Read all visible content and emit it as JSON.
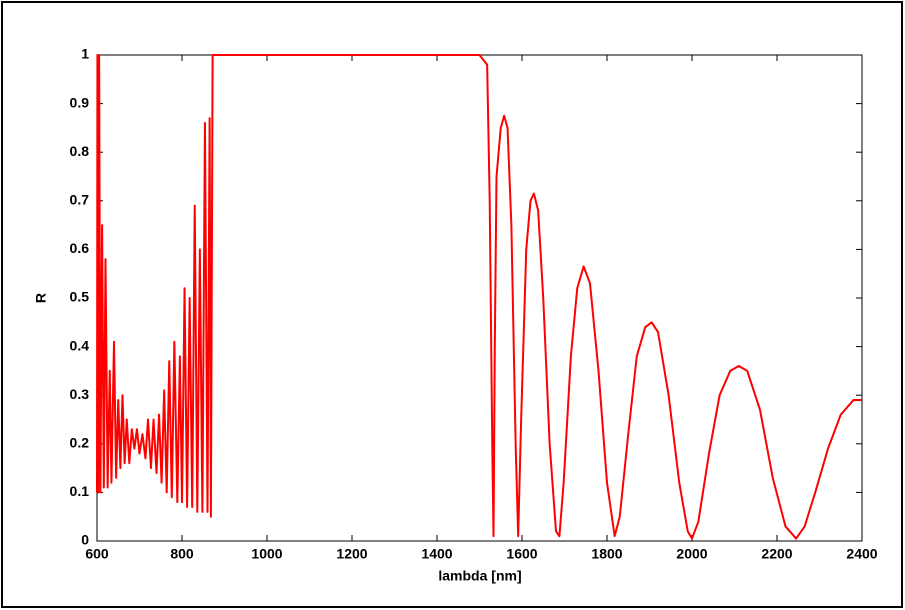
{
  "chart_data": {
    "type": "line",
    "xlabel": "lambda [nm]",
    "ylabel": "R",
    "color": "#ff0000",
    "x": [
      600,
      601,
      603,
      605,
      608,
      612,
      616,
      620,
      625,
      630,
      634,
      640,
      645,
      650,
      655,
      660,
      665,
      670,
      676,
      682,
      688,
      694,
      700,
      707,
      714,
      720,
      727,
      733,
      740,
      746,
      752,
      758,
      764,
      770,
      776,
      782,
      789,
      795,
      800,
      806,
      812,
      818,
      824,
      830,
      836,
      842,
      848,
      854,
      860,
      865,
      868,
      872,
      880,
      1500,
      1518,
      1524,
      1530,
      1533,
      1536,
      1540,
      1550,
      1558,
      1566,
      1575,
      1585,
      1591,
      1598,
      1610,
      1620,
      1628,
      1638,
      1650,
      1665,
      1680,
      1688,
      1698,
      1715,
      1730,
      1745,
      1760,
      1780,
      1800,
      1818,
      1830,
      1850,
      1870,
      1890,
      1905,
      1920,
      1945,
      1970,
      1990,
      2000,
      2015,
      2040,
      2065,
      2090,
      2110,
      2130,
      2160,
      2190,
      2220,
      2245,
      2265,
      2290,
      2320,
      2350,
      2380,
      2400
    ],
    "values": [
      0.1,
      1.0,
      0.1,
      1.0,
      0.1,
      0.65,
      0.11,
      0.58,
      0.11,
      0.35,
      0.12,
      0.41,
      0.13,
      0.29,
      0.15,
      0.3,
      0.16,
      0.25,
      0.16,
      0.23,
      0.19,
      0.23,
      0.18,
      0.22,
      0.17,
      0.25,
      0.15,
      0.25,
      0.14,
      0.26,
      0.12,
      0.31,
      0.1,
      0.37,
      0.09,
      0.41,
      0.08,
      0.38,
      0.08,
      0.52,
      0.07,
      0.5,
      0.07,
      0.69,
      0.06,
      0.6,
      0.06,
      0.86,
      0.06,
      0.87,
      0.05,
      1.0,
      1.0,
      1.0,
      0.98,
      0.7,
      0.2,
      0.01,
      0.4,
      0.75,
      0.85,
      0.875,
      0.85,
      0.65,
      0.2,
      0.01,
      0.25,
      0.6,
      0.7,
      0.715,
      0.68,
      0.5,
      0.2,
      0.02,
      0.01,
      0.12,
      0.38,
      0.52,
      0.565,
      0.53,
      0.35,
      0.12,
      0.01,
      0.05,
      0.22,
      0.38,
      0.44,
      0.45,
      0.43,
      0.3,
      0.12,
      0.02,
      0.005,
      0.04,
      0.18,
      0.3,
      0.35,
      0.36,
      0.35,
      0.27,
      0.13,
      0.03,
      0.005,
      0.03,
      0.1,
      0.19,
      0.26,
      0.29,
      0.29
    ],
    "xlim": [
      600,
      2400
    ],
    "xticks": [
      600,
      800,
      1000,
      1200,
      1400,
      1600,
      1800,
      2000,
      2200,
      2400
    ],
    "ylim": [
      0,
      1
    ],
    "yticks": [
      0,
      0.1,
      0.2,
      0.3,
      0.4,
      0.5,
      0.6,
      0.7,
      0.8,
      0.9,
      1
    ]
  }
}
